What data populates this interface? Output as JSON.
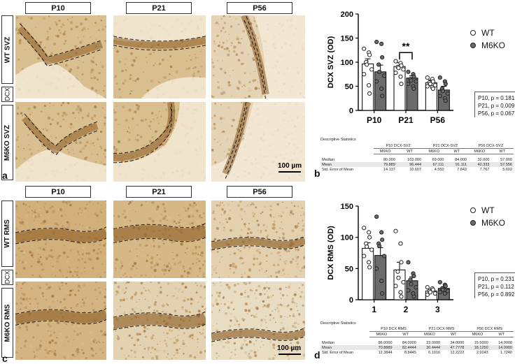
{
  "panel_a": {
    "letter": "a",
    "columns": [
      "P10",
      "P21",
      "P56"
    ],
    "rows": [
      {
        "label": "WT SVZ",
        "kind": "svz"
      },
      {
        "label": "DCX",
        "kind": "tag"
      },
      {
        "label": "M6KO SVZ",
        "kind": "svz"
      }
    ],
    "scalebar": "100 µm"
  },
  "panel_c": {
    "letter": "c",
    "columns": [
      "P10",
      "P21",
      "P56"
    ],
    "rows": [
      {
        "label": "WT RMS",
        "kind": "rms"
      },
      {
        "label": "DCX",
        "kind": "tag"
      },
      {
        "label": "M6KO RMS",
        "kind": "rms"
      }
    ],
    "scalebar": "100 µm"
  },
  "panel_b": {
    "letter": "b",
    "significance": "**",
    "stats": [
      "P10, p = 0.181",
      "P21, p = 0.009",
      "P56, p = 0.067"
    ],
    "table": {
      "title": "Descriptive Statistics",
      "groups": [
        "P10 DCX-SVZ",
        "P21 DCX-SVZ",
        "P56 DCX-SVZ"
      ],
      "subheaders": [
        "M6KO",
        "WT",
        "M6KO",
        "WT",
        "M6KO",
        "WT"
      ],
      "rows": [
        {
          "label": "Median",
          "values": [
            "80.000",
            "103.000",
            "69.000",
            "84.000",
            "32.000",
            "57.000"
          ]
        },
        {
          "label": "Mean",
          "values": [
            "79.889",
            "96.444",
            "67.111",
            "91.111",
            "42.333",
            "57.556"
          ]
        },
        {
          "label": "Std. Error of Mean",
          "values": [
            "14.137",
            "10.607",
            "4.550",
            "7.843",
            "7.767",
            "5.602"
          ]
        }
      ]
    }
  },
  "panel_d": {
    "letter": "d",
    "stats": [
      "P10, p = 0.231",
      "P21, p = 0.112",
      "P56, p = 0.892"
    ],
    "table": {
      "title": "Descriptive Statistics",
      "groups": [
        "P10 DCX RMS",
        "P21 DCX RMS",
        "P56 DCX RMS"
      ],
      "subheaders": [
        "M6KO",
        "WT",
        "M6KO",
        "WT",
        "M6KO",
        "WT"
      ],
      "rows": [
        {
          "label": "Median",
          "values": [
            "86.0000",
            "84.0000",
            "23.0000",
            "34.0000",
            "15.5000",
            "14.0000"
          ]
        },
        {
          "label": "Mean",
          "values": [
            "70.8889",
            "82.4444",
            "30.4444",
            "47.7778",
            "18.1250",
            "14.0000"
          ]
        },
        {
          "label": "Std. Error of Mean",
          "values": [
            "12.3844",
            "8.8445",
            "6.1916",
            "12.2222",
            "2.9243",
            "1.7240"
          ]
        }
      ]
    }
  },
  "colors": {
    "wt_fill": "#ffffff",
    "m6ko_fill": "#6b6b6b",
    "tissue_light": "#e9dcc2",
    "tissue_mid": "#c9a26a",
    "tissue_dark": "#8a5a22"
  },
  "chart_data": [
    {
      "type": "bar",
      "ylabel": "DCX SVZ (OD)",
      "categories": [
        "P10",
        "P21",
        "P56"
      ],
      "ylim": [
        0,
        200
      ],
      "yticks": [
        0,
        50,
        100,
        150,
        200
      ],
      "legend": "top-right",
      "grid": false,
      "series": [
        {
          "name": "WT",
          "values": [
            96.4,
            91.1,
            57.6
          ],
          "sem": [
            10.6,
            7.8,
            5.6
          ],
          "points": [
            [
              128,
              120,
              115,
              100,
              95,
              85,
              75,
              52,
              35
            ],
            [
              102,
              98,
              93,
              90,
              88,
              85,
              78,
              70,
              55
            ],
            [
              68,
              65,
              60,
              58,
              55,
              52,
              50,
              48,
              45
            ]
          ]
        },
        {
          "name": "M6KO",
          "values": [
            79.9,
            67.1,
            42.3
          ],
          "sem": [
            14.1,
            4.6,
            7.8
          ],
          "points": [
            [
              142,
              138,
              110,
              95,
              80,
              72,
              60,
              45,
              30
            ],
            [
              80,
              75,
              70,
              65,
              62,
              60,
              55,
              50,
              45
            ],
            [
              68,
              60,
              55,
              45,
              40,
              35,
              30,
              25,
              20
            ]
          ]
        }
      ]
    },
    {
      "type": "bar",
      "ylabel": "DCX RMS (OD)",
      "categories": [
        "1",
        "2",
        "3"
      ],
      "ylim": [
        0,
        150
      ],
      "yticks": [
        0,
        50,
        100,
        150
      ],
      "legend": "top-right",
      "grid": false,
      "series": [
        {
          "name": "WT",
          "values": [
            82.4,
            47.8,
            14.0
          ],
          "sem": [
            8.8,
            12.2,
            1.7
          ],
          "points": [
            [
              115,
              108,
              100,
              90,
              85,
              80,
              70,
              60,
              52
            ],
            [
              110,
              90,
              60,
              45,
              35,
              28,
              22,
              12,
              5
            ],
            [
              20,
              18,
              16,
              14,
              12,
              10,
              8
            ]
          ]
        },
        {
          "name": "M6KO",
          "values": [
            70.9,
            30.4,
            18.1
          ],
          "sem": [
            12.4,
            6.2,
            2.9
          ],
          "points": [
            [
              133,
              108,
              96,
              90,
              86,
              70,
              50,
              30,
              10
            ],
            [
              60,
              42,
              38,
              32,
              25,
              20,
              15,
              10,
              5
            ],
            [
              28,
              24,
              22,
              18,
              16,
              14,
              12,
              10
            ]
          ]
        }
      ]
    }
  ]
}
